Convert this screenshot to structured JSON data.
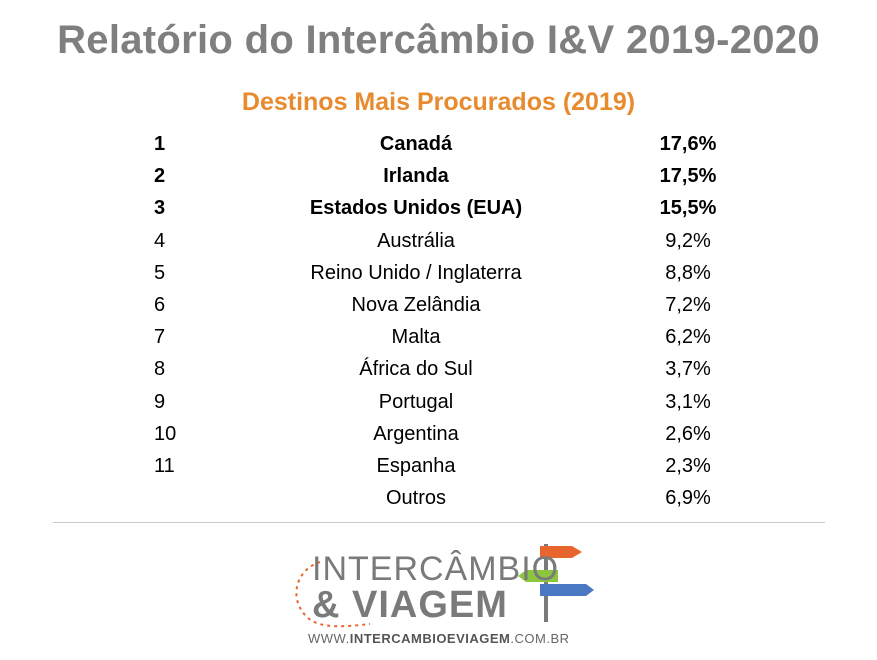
{
  "title": "Relatório do Intercâmbio I&V 2019-2020",
  "subtitle": "Destinos Mais Procurados (2019)",
  "ranking": [
    {
      "rank": "1",
      "country": "Canadá",
      "pct": "17,6%"
    },
    {
      "rank": "2",
      "country": "Irlanda",
      "pct": "17,5%"
    },
    {
      "rank": "3",
      "country": "Estados Unidos (EUA)",
      "pct": "15,5%"
    },
    {
      "rank": "4",
      "country": "Austrália",
      "pct": "9,2%"
    },
    {
      "rank": "5",
      "country": "Reino Unido / Inglaterra",
      "pct": "8,8%"
    },
    {
      "rank": "6",
      "country": "Nova Zelândia",
      "pct": "7,2%"
    },
    {
      "rank": "7",
      "country": "Malta",
      "pct": "6,2%"
    },
    {
      "rank": "8",
      "country": "África do Sul",
      "pct": "3,7%"
    },
    {
      "rank": "9",
      "country": "Portugal",
      "pct": "3,1%"
    },
    {
      "rank": "10",
      "country": "Argentina",
      "pct": "2,6%"
    },
    {
      "rank": "11",
      "country": "Espanha",
      "pct": "2,3%"
    },
    {
      "rank": "",
      "country": "Outros",
      "pct": "6,9%"
    }
  ],
  "logo": {
    "line1": "INTERCÂMBIO",
    "line2": "& VIAGEM",
    "url_prefix": "WWW.",
    "url_bold": "INTERCAMBIOEVIAGEM",
    "url_suffix": ".COM.BR"
  },
  "colors": {
    "title": "#7f7f7f",
    "subtitle": "#e88a2e",
    "logo_orange": "#e8662e",
    "logo_green": "#8cc63f",
    "logo_blue": "#4a78c2"
  }
}
